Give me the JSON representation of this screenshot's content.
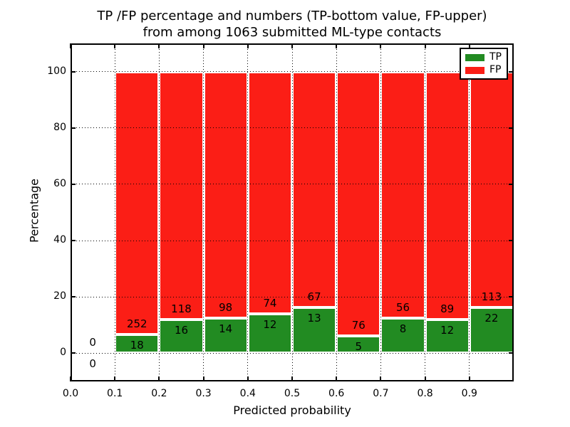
{
  "figure": {
    "title_line1": "TP /FP percentage and numbers (TP-bottom value, FP-upper)",
    "title_line2": "from among 1063 submitted ML-type contacts"
  },
  "chart_data": {
    "type": "bar",
    "stacked": true,
    "title": "TP /FP percentage and numbers (TP-bottom value, FP-upper) from among 1063 submitted ML-type contacts",
    "xlabel": "Predicted probability",
    "ylabel": "Percentage",
    "xlim": [
      0.0,
      1.0
    ],
    "ylim": [
      -10,
      110
    ],
    "grid": "dotted",
    "legend_position": "upper-right",
    "total_submitted": 1063,
    "bin_width": 0.1,
    "x_tick_values": [
      0.0,
      0.1,
      0.2,
      0.3,
      0.4,
      0.5,
      0.6,
      0.7,
      0.8,
      0.9
    ],
    "x_tick_labels": [
      "0.0",
      "0.1",
      "0.2",
      "0.3",
      "0.4",
      "0.5",
      "0.6",
      "0.7",
      "0.8",
      "0.9"
    ],
    "y_ticks": [
      0,
      20,
      40,
      60,
      80,
      100
    ],
    "series": [
      {
        "name": "TP",
        "color": "#228b22"
      },
      {
        "name": "FP",
        "color": "#fb1e16"
      }
    ],
    "bins": [
      {
        "x_start": 0.0,
        "x_end": 0.1,
        "tp": 0,
        "fp": 0,
        "tp_percent": 0,
        "fp_percent": 0
      },
      {
        "x_start": 0.1,
        "x_end": 0.2,
        "tp": 18,
        "fp": 252,
        "tp_percent": 6.67,
        "fp_percent": 93.33
      },
      {
        "x_start": 0.2,
        "x_end": 0.3,
        "tp": 16,
        "fp": 118,
        "tp_percent": 11.94,
        "fp_percent": 88.06
      },
      {
        "x_start": 0.3,
        "x_end": 0.4,
        "tp": 14,
        "fp": 98,
        "tp_percent": 12.5,
        "fp_percent": 87.5
      },
      {
        "x_start": 0.4,
        "x_end": 0.5,
        "tp": 12,
        "fp": 74,
        "tp_percent": 13.95,
        "fp_percent": 86.05
      },
      {
        "x_start": 0.5,
        "x_end": 0.6,
        "tp": 13,
        "fp": 67,
        "tp_percent": 16.25,
        "fp_percent": 83.75
      },
      {
        "x_start": 0.6,
        "x_end": 0.7,
        "tp": 5,
        "fp": 76,
        "tp_percent": 6.17,
        "fp_percent": 93.83
      },
      {
        "x_start": 0.7,
        "x_end": 0.8,
        "tp": 8,
        "fp": 56,
        "tp_percent": 12.5,
        "fp_percent": 87.5
      },
      {
        "x_start": 0.8,
        "x_end": 0.9,
        "tp": 12,
        "fp": 89,
        "tp_percent": 11.88,
        "fp_percent": 88.12
      },
      {
        "x_start": 0.9,
        "x_end": 1.0,
        "tp": 22,
        "fp": 113,
        "tp_percent": 16.3,
        "fp_percent": 83.7
      }
    ],
    "colors": {
      "tp": "#228b22",
      "fp": "#fb1e16",
      "bar_edge": "#ffffff",
      "grid": "#000000",
      "text": "#000000"
    }
  }
}
